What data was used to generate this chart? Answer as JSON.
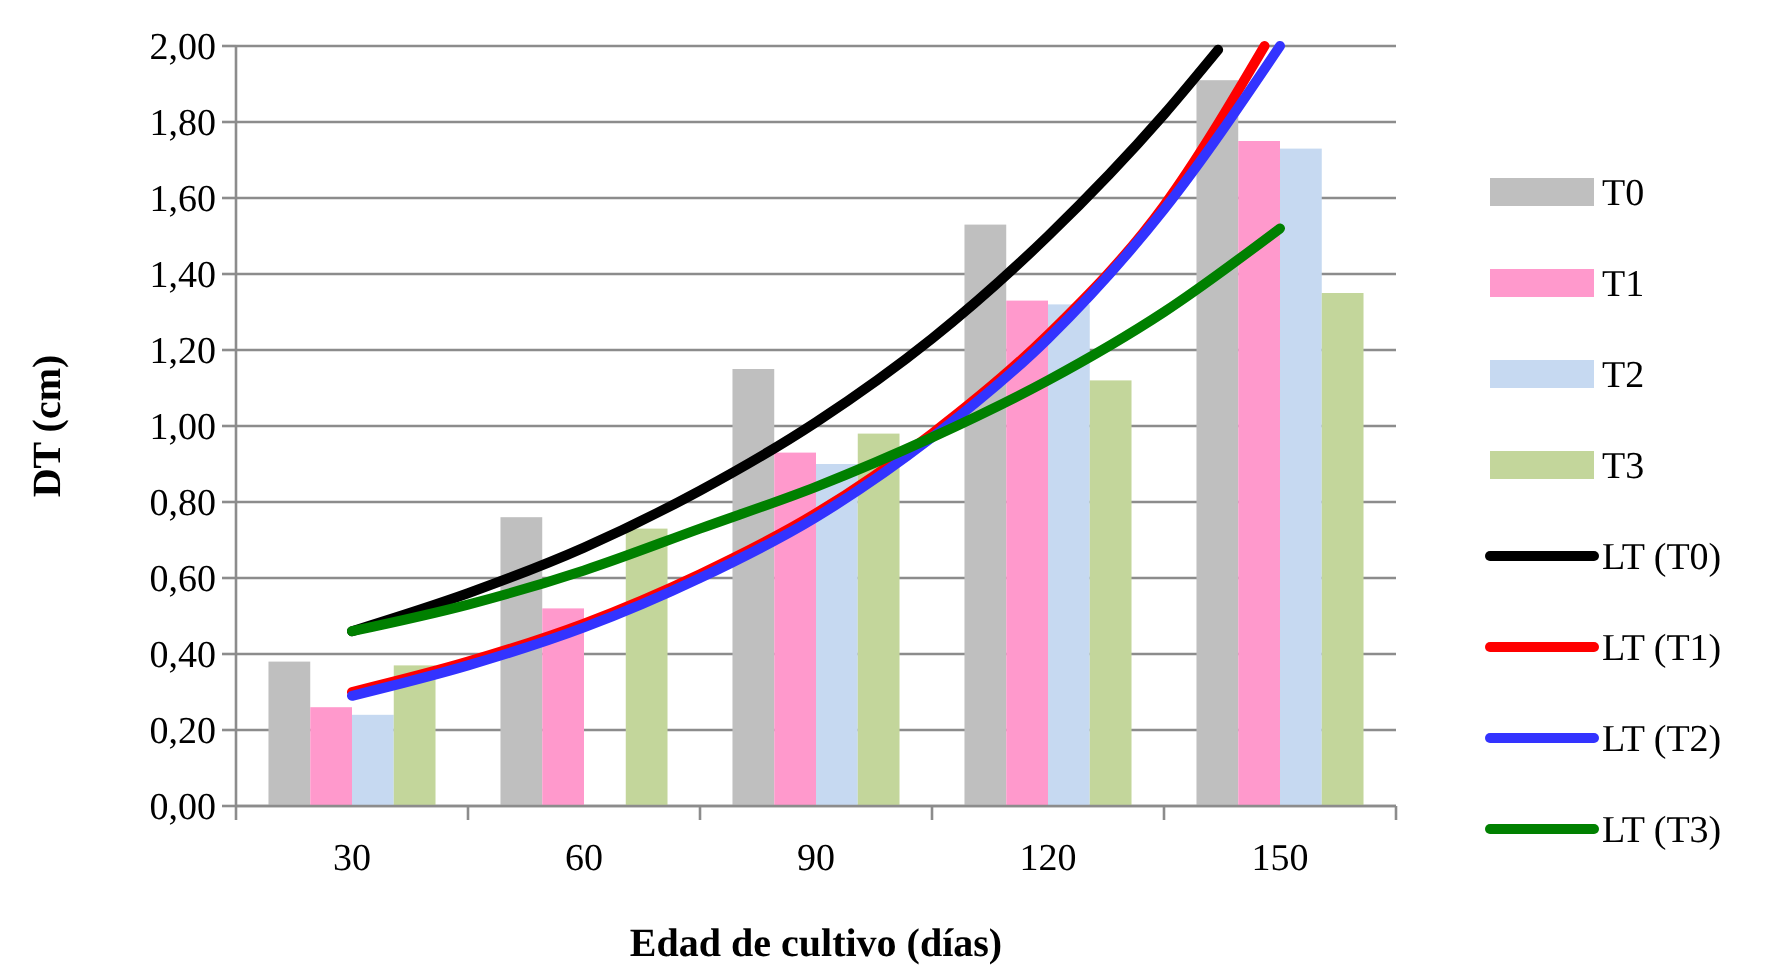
{
  "chart_data": {
    "type": "bar",
    "xlabel": "Edad de cultivo (días)",
    "ylabel": "DT (cm)",
    "x": [
      30,
      60,
      90,
      120,
      150
    ],
    "xlim": [
      15,
      165
    ],
    "xticks": [
      {
        "value": 15,
        "label": null
      },
      30,
      {
        "value": 45,
        "label": null
      },
      60,
      {
        "value": 75,
        "label": null
      },
      90,
      {
        "value": 105,
        "label": null
      },
      120,
      {
        "value": 135,
        "label": null
      },
      150,
      {
        "value": 165,
        "label": null
      }
    ],
    "ylim": [
      0,
      2
    ],
    "yticks": [
      {
        "value": 0,
        "label": "0,00"
      },
      {
        "value": 0.2,
        "label": "0,20"
      },
      {
        "value": 0.4,
        "label": "0,40"
      },
      {
        "value": 0.6,
        "label": "0,60"
      },
      {
        "value": 0.8,
        "label": "0,80"
      },
      {
        "value": 1,
        "label": "1,00"
      },
      {
        "value": 1.2,
        "label": "1,20"
      },
      {
        "value": 1.4,
        "label": "1,40"
      },
      {
        "value": 1.6,
        "label": "1,60"
      },
      {
        "value": 1.8,
        "label": "1,80"
      },
      {
        "value": 2,
        "label": "2,00"
      }
    ],
    "grid": "y",
    "legend": "right",
    "series": [
      {
        "name": "T0",
        "color": "#bfbfbf",
        "values": [
          0.38,
          0.76,
          1.15,
          1.53,
          1.91
        ]
      },
      {
        "name": "T1",
        "color": "#ff99cc",
        "values": [
          0.26,
          0.52,
          0.93,
          1.33,
          1.75
        ]
      },
      {
        "name": "T2",
        "color": "#c6d9f1",
        "values": [
          0.24,
          null,
          0.9,
          1.32,
          1.73
        ]
      },
      {
        "name": "T3",
        "color": "#c3d69b",
        "values": [
          0.37,
          0.73,
          0.98,
          1.12,
          1.35
        ]
      },
      {
        "name": "LT (T0)",
        "type": "line",
        "color": "#000000",
        "x": [
          30,
          45,
          60,
          75,
          90,
          105,
          120,
          135,
          142
        ],
        "values": [
          0.46,
          0.56,
          0.68,
          0.83,
          1.01,
          1.23,
          1.5,
          1.82,
          1.99
        ]
      },
      {
        "name": "LT (T1)",
        "type": "line",
        "color": "#ff0000",
        "x": [
          30,
          45,
          60,
          75,
          90,
          105,
          120,
          135,
          148
        ],
        "values": [
          0.3,
          0.38,
          0.48,
          0.61,
          0.77,
          0.98,
          1.24,
          1.58,
          2.0
        ]
      },
      {
        "name": "LT (T2)",
        "type": "line",
        "color": "#3333ff",
        "x": [
          30,
          45,
          60,
          75,
          90,
          105,
          120,
          135,
          150
        ],
        "values": [
          0.29,
          0.37,
          0.47,
          0.6,
          0.76,
          0.97,
          1.23,
          1.57,
          2.0
        ]
      },
      {
        "name": "LT (T3)",
        "type": "line",
        "color": "#008000",
        "x": [
          30,
          45,
          60,
          75,
          90,
          105,
          120,
          135,
          150
        ],
        "values": [
          0.46,
          0.53,
          0.62,
          0.73,
          0.84,
          0.97,
          1.12,
          1.3,
          1.52
        ]
      }
    ]
  }
}
